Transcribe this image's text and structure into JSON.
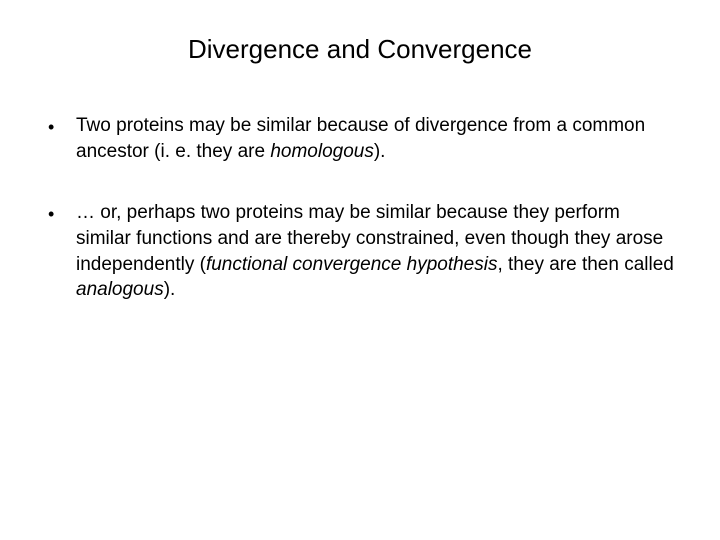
{
  "title": "Divergence and Convergence",
  "bullets": [
    {
      "parts": [
        {
          "text": "Two proteins may be similar because of divergence from a common ancestor (i. e. they are ",
          "italic": false
        },
        {
          "text": "homologous",
          "italic": true
        },
        {
          "text": ").",
          "italic": false
        }
      ]
    },
    {
      "parts": [
        {
          "text": "… or, perhaps two proteins may be similar because they perform similar functions and are thereby constrained, even though they arose independently (",
          "italic": false
        },
        {
          "text": "functional convergence hypothesis",
          "italic": true
        },
        {
          "text": ", they are then called ",
          "italic": false
        },
        {
          "text": "analogous",
          "italic": true
        },
        {
          "text": ").",
          "italic": false
        }
      ]
    }
  ],
  "colors": {
    "background": "#ffffff",
    "text": "#000000"
  },
  "typography": {
    "title_fontsize": 26,
    "body_fontsize": 19,
    "font_family": "Arial"
  }
}
